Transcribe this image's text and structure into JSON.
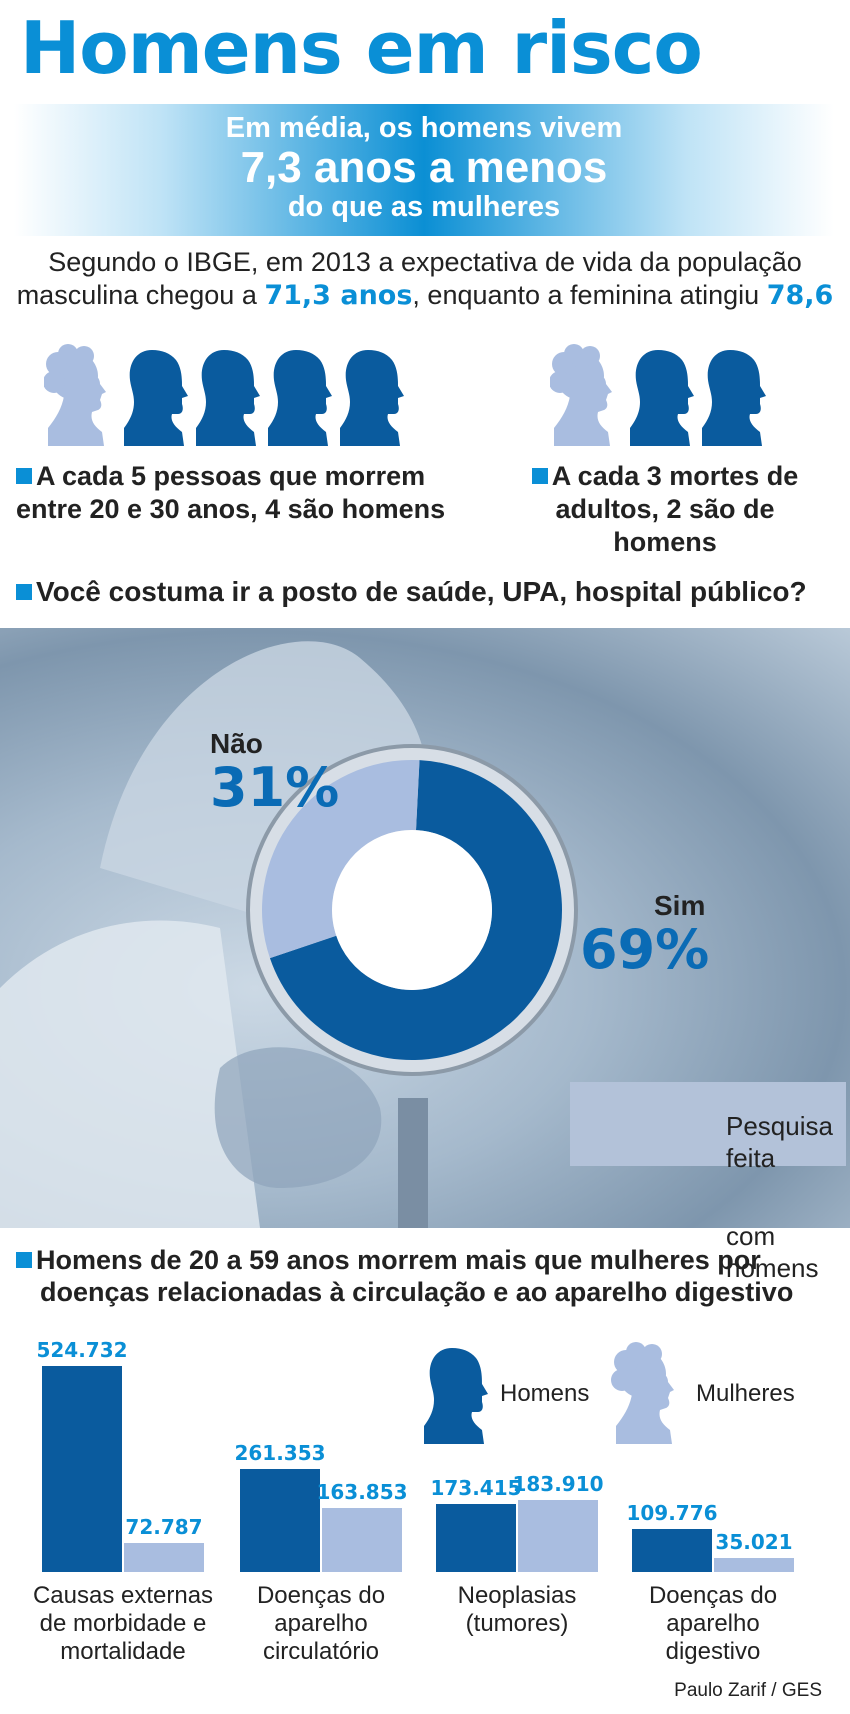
{
  "title": "Homens em risco",
  "banner": {
    "line1": "Em média, os homens vivem",
    "line2": "7,3 anos a menos",
    "line3": "do que as mulheres"
  },
  "intro": {
    "text1": "Segundo o IBGE, em 2013 a expectativa de vida da população",
    "text2a": "masculina chegou a ",
    "male_value": "71,3 anos",
    "text2b": ", enquanto a feminina atingiu ",
    "female_value": "78,6"
  },
  "stats": [
    {
      "line1": "A cada 5 pessoas que morrem",
      "line2": "entre 20 e 30 anos, 4 são homens"
    },
    {
      "line1": "A cada 3 mortes de",
      "line2": "adultos, 2 são de homens"
    }
  ],
  "survey": {
    "question": "Você costuma ir a posto de saúde, UPA, hospital público?",
    "no_label": "Não",
    "no_value": "31%",
    "yes_label": "Sim",
    "yes_value": "69%",
    "note_line1": "Pesquisa feita",
    "note_line2": "com homens"
  },
  "deaths": {
    "line1": "Homens de 20 a 59 anos morrem mais que mulheres por",
    "line2": "doenças relacionadas à circulação e ao aparelho digestivo"
  },
  "colors": {
    "accent": "#0a8fd6",
    "men": "#0a5b9e",
    "women": "#a9bde0"
  },
  "chart_data": [
    {
      "type": "pie",
      "categories": [
        "Sim",
        "Não"
      ],
      "values": [
        69,
        31
      ]
    },
    {
      "type": "bar",
      "categories": [
        [
          "Causas externas",
          "de morbidade e",
          "mortalidade"
        ],
        [
          "Doenças do",
          "aparelho",
          "circulatório"
        ],
        [
          "Neoplasias",
          "(tumores)"
        ],
        [
          "Doenças do",
          "aparelho",
          "digestivo"
        ]
      ],
      "series": [
        {
          "name": "Homens",
          "values": [
            524732,
            261353,
            173415,
            109776
          ],
          "labels": [
            "524.732",
            "261.353",
            "173.415",
            "109.776"
          ]
        },
        {
          "name": "Mulheres",
          "values": [
            72787,
            163853,
            183910,
            35021
          ],
          "labels": [
            "72.787",
            "163.853",
            "183.910",
            "35.021"
          ]
        }
      ]
    }
  ],
  "credit": "Paulo Zarif / GES"
}
